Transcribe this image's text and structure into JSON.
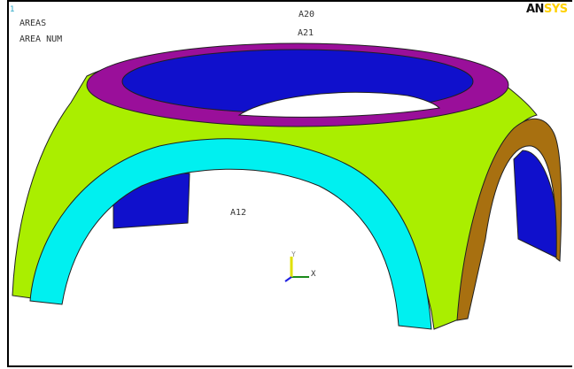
{
  "window": {
    "number": "1"
  },
  "legend": {
    "line1": "AREAS",
    "line2": "AREA NUM"
  },
  "labels": {
    "a20": "A20",
    "a21": "A21",
    "a12": "A12"
  },
  "logo": {
    "part1": "AN",
    "part2": "SYS"
  },
  "axis_triad": {
    "x_label": "X",
    "y_label": "Y"
  },
  "colors": {
    "shell": "#aaee00",
    "top_ring": "#9a0f9a",
    "inner_wall": "#1010cc",
    "front_arch_band": "#00f0f0",
    "side_arch_band": "#a87010",
    "outline": "#202020",
    "background": "#ffffff"
  }
}
